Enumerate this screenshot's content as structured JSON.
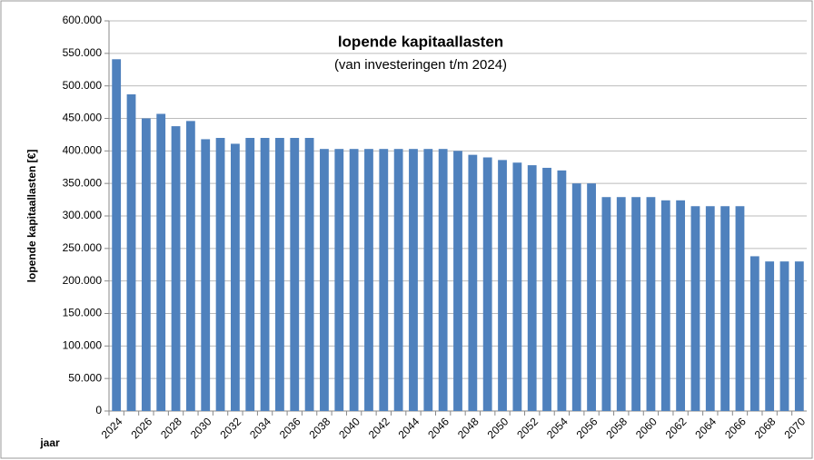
{
  "chart_data": {
    "type": "bar",
    "title": "lopende kapitaallasten",
    "subtitle": "(van investeringen t/m 2024)",
    "y_label": "lopende kapitaallasten [€]",
    "x_label": "jaar",
    "categories": [
      "2024",
      null,
      "2026",
      null,
      "2028",
      null,
      "2030",
      null,
      "2032",
      null,
      "2034",
      null,
      "2036",
      null,
      "2038",
      null,
      "2040",
      null,
      "2042",
      null,
      "2044",
      null,
      "2046",
      null,
      "2048",
      null,
      "2050",
      null,
      "2052",
      null,
      "2054",
      null,
      "2056",
      null,
      "2058",
      null,
      "2060",
      null,
      "2062",
      null,
      "2064",
      null,
      "2066",
      null,
      "2068",
      null,
      "2070"
    ],
    "values": [
      541000,
      487000,
      450000,
      457000,
      438000,
      446000,
      418000,
      420000,
      411000,
      420000,
      420000,
      420000,
      420000,
      420000,
      403000,
      403000,
      403000,
      403000,
      403000,
      403000,
      403000,
      403000,
      403000,
      400000,
      394000,
      390000,
      386000,
      382000,
      378000,
      374000,
      370000,
      350000,
      350000,
      329000,
      329000,
      329000,
      329000,
      324000,
      324000,
      315000,
      315000,
      315000,
      315000,
      238000,
      230000,
      230000,
      230000
    ],
    "color": "#4f81bd",
    "ylim": [
      0,
      600000
    ],
    "yticks": [
      0,
      {
        "value": 50000,
        "label": "50.000"
      },
      {
        "value": 100000,
        "label": "100.000"
      },
      {
        "value": 150000,
        "label": "150.000"
      },
      {
        "value": 200000,
        "label": "200.000"
      },
      {
        "value": 250000,
        "label": "250.000"
      },
      {
        "value": 300000,
        "label": "300.000"
      },
      {
        "value": 350000,
        "label": "350.000"
      },
      {
        "value": 400000,
        "label": "400.000"
      },
      {
        "value": 450000,
        "label": "450.000"
      },
      {
        "value": 500000,
        "label": "500.000"
      },
      {
        "value": 550000,
        "label": "550.000"
      },
      {
        "value": 600000,
        "label": "600.000"
      }
    ],
    "grid": true
  }
}
